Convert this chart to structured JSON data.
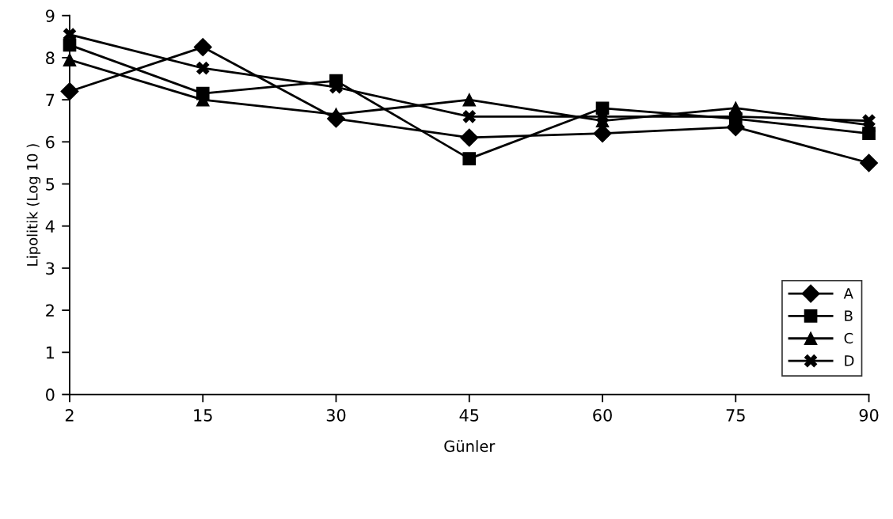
{
  "chart_data": {
    "type": "line",
    "xlabel": "Günler",
    "ylabel": "Lipolitik (Log 10 )",
    "categories": [
      "2",
      "15",
      "30",
      "45",
      "60",
      "75",
      "90"
    ],
    "series": [
      {
        "name": "A",
        "color": "#000000",
        "marker": "diamond",
        "values": [
          7.2,
          8.25,
          6.55,
          6.1,
          6.2,
          6.35,
          5.5
        ]
      },
      {
        "name": "B",
        "color": "#000000",
        "marker": "square",
        "values": [
          8.3,
          7.15,
          7.45,
          5.6,
          6.8,
          6.55,
          6.2
        ]
      },
      {
        "name": "C",
        "color": "#000000",
        "marker": "triangle",
        "values": [
          7.95,
          7.0,
          6.65,
          7.0,
          6.5,
          6.8,
          6.4
        ]
      },
      {
        "name": "D",
        "color": "#000000",
        "marker": "cross",
        "values": [
          8.55,
          7.75,
          7.3,
          6.6,
          6.6,
          6.6,
          6.5
        ]
      }
    ],
    "ylim": [
      0,
      9
    ],
    "yticks": [
      0,
      1,
      2,
      3,
      4,
      5,
      6,
      7,
      8,
      9
    ],
    "grid": false,
    "legend": "bottom right",
    "line_style": "solid"
  }
}
